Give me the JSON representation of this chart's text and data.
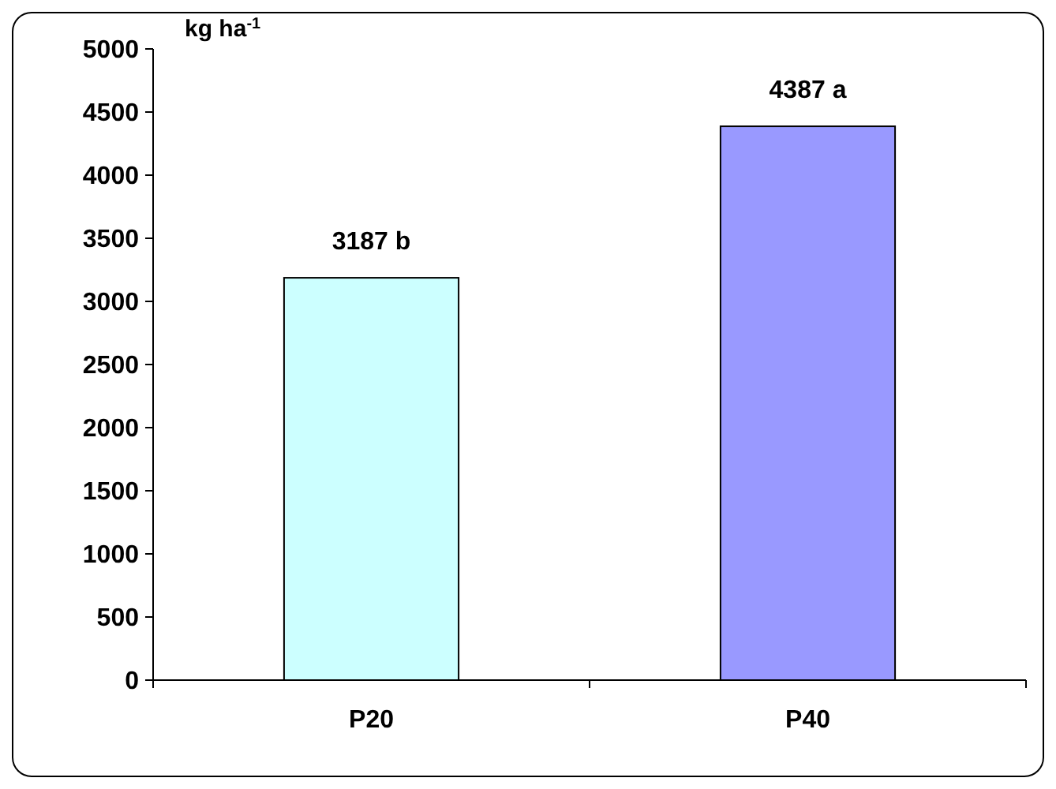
{
  "chart_data": {
    "type": "bar",
    "ylabel": "kg ha$^{-1}$",
    "categories": [
      "P20",
      "P40"
    ],
    "values": [
      3187,
      4387
    ],
    "colors": [
      "#ccffff",
      "#9999ff"
    ],
    "value_labels": [
      "3187 b",
      "4387 a"
    ],
    "ylim": [
      0,
      5000
    ],
    "yticks": [
      0,
      500,
      1000,
      1500,
      2000,
      2500,
      3000,
      3500,
      4000,
      4500,
      5000
    ]
  }
}
